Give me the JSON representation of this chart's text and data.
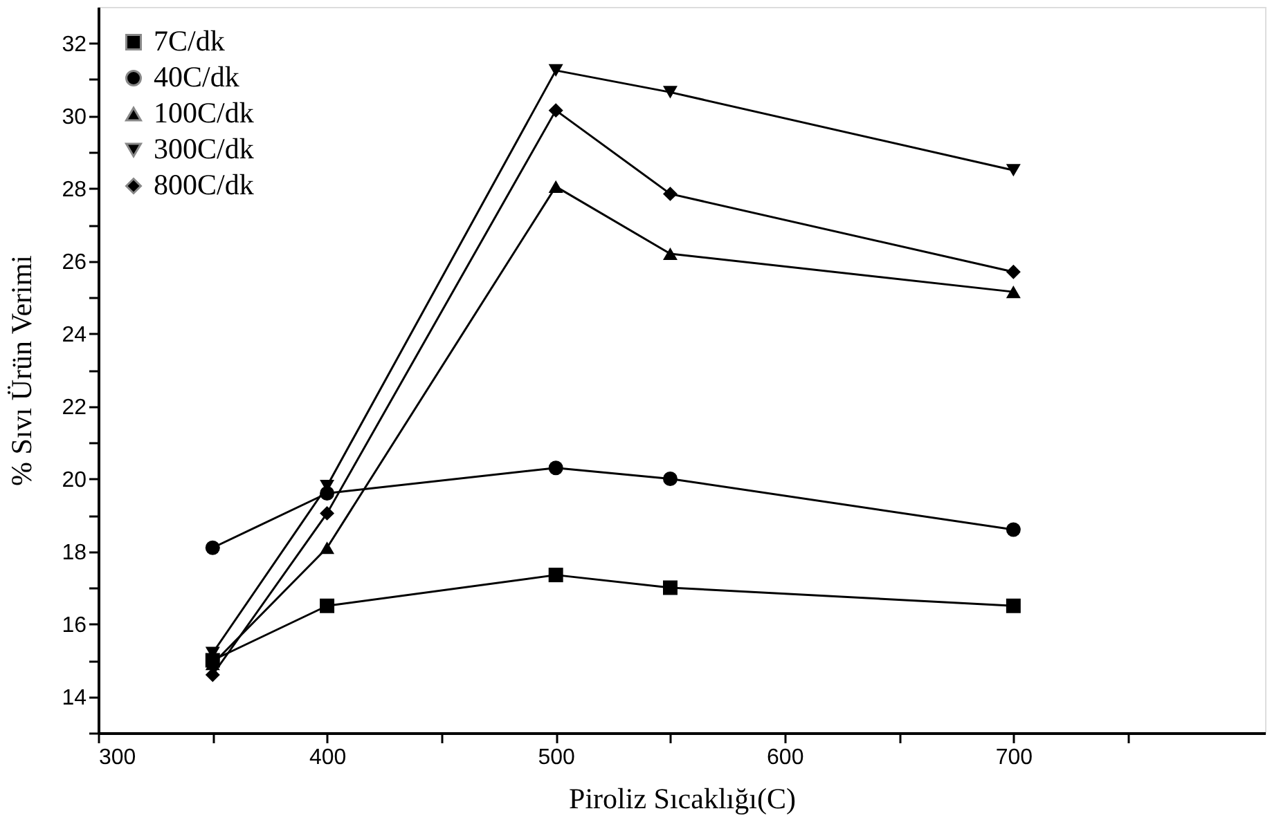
{
  "chart_data": {
    "type": "line",
    "xlabel": "Piroliz Sıcaklığı(C)",
    "ylabel": "% Sıvı Ürün Verimi",
    "x": [
      350,
      400,
      500,
      550,
      700
    ],
    "series": [
      {
        "name": "7C/dk",
        "color": "#000000",
        "marker": "square",
        "values": [
          15.0,
          16.5,
          17.35,
          17.0,
          16.5
        ]
      },
      {
        "name": "40C/dk",
        "color": "#000000",
        "marker": "circle",
        "values": [
          18.1,
          19.6,
          20.3,
          20.0,
          18.6
        ]
      },
      {
        "name": "100C/dk",
        "color": "#000000",
        "marker": "triangle",
        "values": [
          14.9,
          18.1,
          28.05,
          26.2,
          25.15
        ]
      },
      {
        "name": "300C/dk",
        "color": "#000000",
        "marker": "triangle-down",
        "values": [
          15.2,
          19.8,
          31.25,
          30.65,
          28.5
        ]
      },
      {
        "name": "800C/dk",
        "color": "#000000",
        "marker": "diamond",
        "values": [
          14.6,
          19.05,
          30.15,
          27.85,
          25.7
        ]
      }
    ],
    "xlim": [
      300,
      810
    ],
    "ylim": [
      13,
      33
    ],
    "xticks": [
      300,
      {
        "value": 350,
        "label": null
      },
      400,
      {
        "value": 450,
        "label": null
      },
      500,
      {
        "value": 550,
        "label": null
      },
      600,
      {
        "value": 650,
        "label": null
      },
      700,
      {
        "value": 750,
        "label": null
      }
    ],
    "yticks": [
      {
        "value": 13,
        "label": null
      },
      14,
      {
        "value": 15,
        "label": null
      },
      16,
      {
        "value": 17,
        "label": null
      },
      18,
      {
        "value": 19,
        "label": null
      },
      20,
      {
        "value": 21,
        "label": null
      },
      22,
      {
        "value": 23,
        "label": null
      },
      24,
      {
        "value": 25,
        "label": null
      },
      26,
      {
        "value": 27,
        "label": null
      },
      28,
      {
        "value": 29,
        "label": null
      },
      30,
      {
        "value": 31,
        "label": null
      },
      32
    ],
    "grid": false,
    "legend": "top left",
    "line_style": "solid"
  }
}
